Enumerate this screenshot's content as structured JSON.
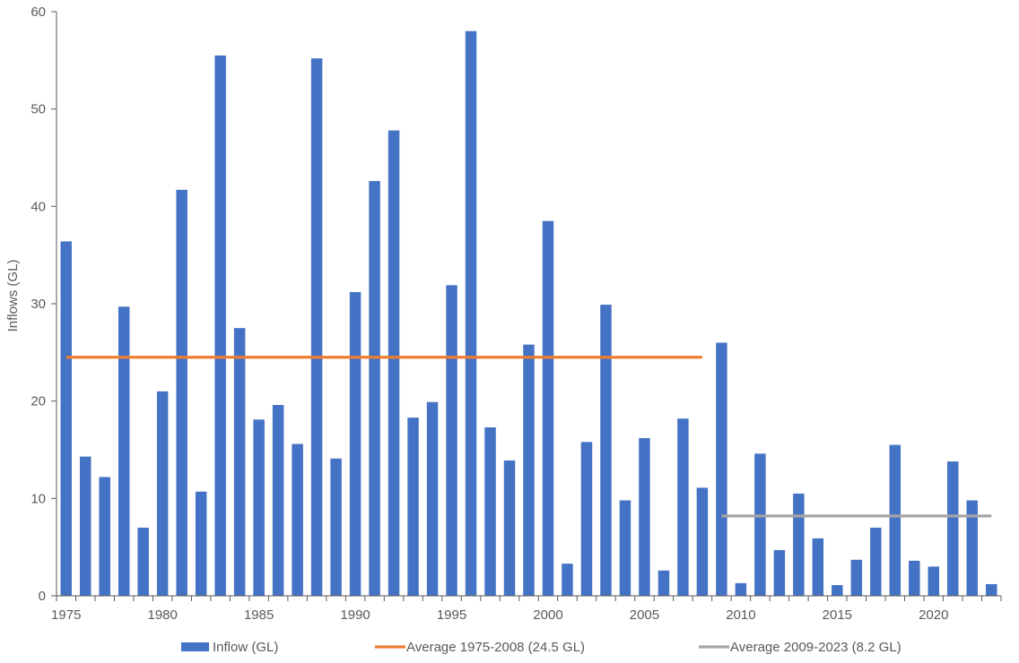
{
  "chart_data": {
    "type": "bar",
    "title": "",
    "xlabel": "",
    "ylabel": "Inflows (GL)",
    "ylim": [
      0,
      60
    ],
    "yticks": [
      0,
      10,
      20,
      30,
      40,
      50,
      60
    ],
    "xtick_labels": [
      "1975",
      "1980",
      "1985",
      "1990",
      "1995",
      "2000",
      "2005",
      "2010",
      "2015",
      "2020"
    ],
    "grid": false,
    "legend_position": "bottom",
    "colors": {
      "inflow": "#4472C4",
      "avg1": "#ED7D31",
      "avg2": "#A5A5A5",
      "axis": "#595959"
    },
    "x": [
      1975,
      1976,
      1977,
      1978,
      1979,
      1980,
      1981,
      1982,
      1983,
      1984,
      1985,
      1986,
      1987,
      1988,
      1989,
      1990,
      1991,
      1992,
      1993,
      1994,
      1995,
      1996,
      1997,
      1998,
      1999,
      2000,
      2001,
      2002,
      2003,
      2004,
      2005,
      2006,
      2007,
      2008,
      2009,
      2010,
      2011,
      2012,
      2013,
      2014,
      2015,
      2016,
      2017,
      2018,
      2019,
      2020,
      2021,
      2022,
      2023
    ],
    "series": [
      {
        "name": "Inflow (GL)",
        "kind": "bar",
        "values": [
          36.4,
          14.3,
          12.2,
          29.7,
          7.0,
          21.0,
          41.7,
          10.7,
          55.5,
          27.5,
          18.1,
          19.6,
          15.6,
          55.2,
          14.1,
          31.2,
          42.6,
          47.8,
          18.3,
          19.9,
          31.9,
          58.0,
          17.3,
          13.9,
          25.8,
          38.5,
          3.3,
          15.8,
          29.9,
          9.8,
          16.2,
          2.6,
          18.2,
          11.1,
          26.0,
          1.3,
          14.6,
          4.7,
          10.5,
          5.9,
          1.1,
          3.7,
          7.0,
          15.5,
          3.6,
          3.0,
          13.8,
          9.8,
          1.2
        ]
      },
      {
        "name": "Average 1975-2008 (24.5 GL)",
        "kind": "line",
        "x_start": 1975,
        "x_end": 2008,
        "value": 24.5
      },
      {
        "name": "Average 2009-2023 (8.2 GL)",
        "kind": "line",
        "x_start": 2009,
        "x_end": 2023,
        "value": 8.2
      }
    ]
  }
}
